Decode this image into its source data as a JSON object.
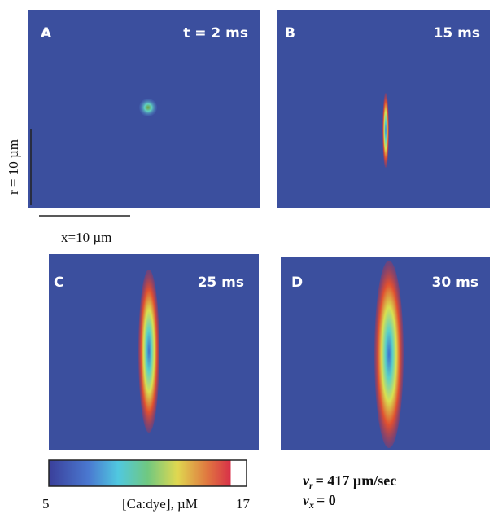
{
  "panels": [
    {
      "letter": "A",
      "time": "t = 2 ms"
    },
    {
      "letter": "B",
      "time": "15 ms"
    },
    {
      "letter": "C",
      "time": "25 ms"
    },
    {
      "letter": "D",
      "time": "30 ms"
    }
  ],
  "scale_bars": {
    "vertical": "r = 10 µm",
    "horizontal": "x=10 µm"
  },
  "colorbar": {
    "min": "5",
    "label": "[Ca:dye], µM",
    "max": "17"
  },
  "velocities": [
    {
      "symbol": "v",
      "subscript": "r",
      "text": "= 417 µm/sec"
    },
    {
      "symbol": "v",
      "subscript": "x",
      "text": "= 0"
    }
  ]
}
